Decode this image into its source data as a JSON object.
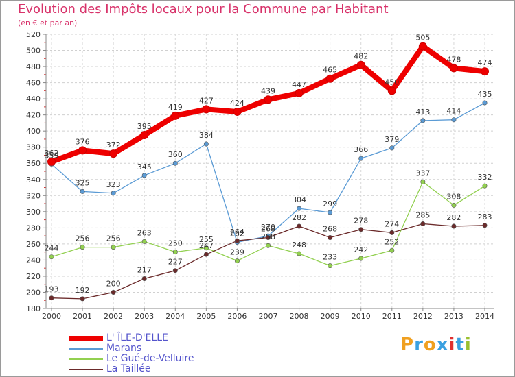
{
  "header": {
    "title": "Evolution des Impôts locaux pour la Commune par Habitant",
    "subtitle": "(en € et par an)"
  },
  "logo": {
    "letters": [
      "P",
      "r",
      "o",
      "x",
      "i",
      "t",
      "i"
    ],
    "colors": [
      "#f0a020",
      "#3aa0e0",
      "#f0a020",
      "#3aa0e0",
      "#e03030",
      "#3aa0e0",
      "#9ac030"
    ]
  },
  "chart_data": {
    "type": "line",
    "title": "Evolution des Impôts locaux pour la Commune par Habitant",
    "ylabel": "",
    "xlabel": "",
    "x": [
      "2000",
      "2001",
      "2002",
      "2003",
      "2004",
      "2005",
      "2006",
      "2007",
      "2008",
      "2009",
      "2010",
      "2011",
      "2012",
      "2013",
      "2014"
    ],
    "ylim": [
      180,
      520
    ],
    "yticks": [
      180,
      200,
      220,
      240,
      260,
      280,
      300,
      320,
      340,
      360,
      380,
      400,
      420,
      440,
      460,
      480,
      500,
      520
    ],
    "grid": "horizontal dashed",
    "legend": "bottom-left",
    "series": [
      {
        "name": "L' ÎLE-D'ELLE",
        "color": "#ee0000",
        "values": [
          362,
          376,
          372,
          395,
          419,
          427,
          424,
          439,
          447,
          465,
          482,
          450,
          505,
          478,
          474
        ]
      },
      {
        "name": "Marans",
        "color": "#5b9bd5",
        "values": [
          359,
          325,
          323,
          345,
          360,
          384,
          262,
          270,
          304,
          299,
          366,
          379,
          413,
          414,
          435
        ]
      },
      {
        "name": "Le Gué-de-Velluire",
        "color": "#92d050",
        "values": [
          244,
          256,
          256,
          263,
          250,
          255,
          239,
          258,
          248,
          233,
          242,
          252,
          337,
          308,
          332
        ]
      },
      {
        "name": "La Taillée",
        "color": "#6b2a2a",
        "values": [
          193,
          192,
          200,
          217,
          227,
          247,
          264,
          268,
          282,
          268,
          278,
          274,
          285,
          282,
          283
        ]
      }
    ]
  }
}
